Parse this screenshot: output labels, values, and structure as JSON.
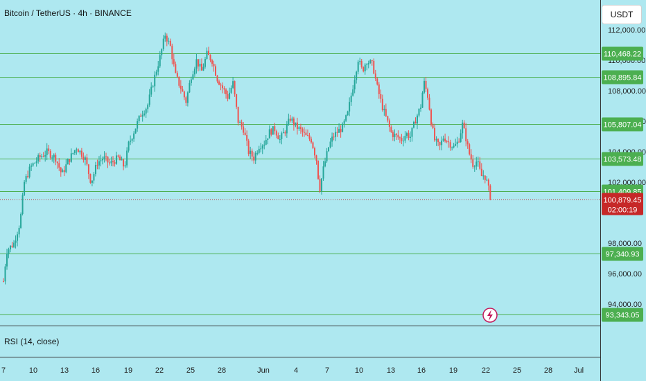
{
  "header": {
    "title": "Bitcoin / TetherUS · 4h · BINANCE"
  },
  "currency": {
    "label": "USDT"
  },
  "rsi": {
    "label": "RSI (14, close)"
  },
  "colors": {
    "background": "#aee8f0",
    "up": "#26a69a",
    "down": "#ef5350",
    "level": "#4caf50",
    "current": "#c62828"
  },
  "chart_data": {
    "type": "candlestick",
    "title": "Bitcoin / TetherUS · 4h · BINANCE",
    "ylim": [
      92600,
      112600
    ],
    "y_ticks": [
      {
        "value": 112000,
        "label": "112,000.00"
      },
      {
        "value": 110000,
        "label": "110,000.00"
      },
      {
        "value": 108000,
        "label": "108,000.00"
      },
      {
        "value": 106000,
        "label": "106,000.00"
      },
      {
        "value": 104000,
        "label": "104,000.00"
      },
      {
        "value": 102000,
        "label": "102,000.00"
      },
      {
        "value": 98000,
        "label": "98,000.00"
      },
      {
        "value": 96000,
        "label": "96,000.00"
      },
      {
        "value": 94000,
        "label": "94,000.00"
      }
    ],
    "x_ticks": [
      "7",
      "10",
      "13",
      "16",
      "19",
      "22",
      "25",
      "28",
      "Jun",
      "4",
      "7",
      "10",
      "13",
      "16",
      "19",
      "22",
      "25",
      "28",
      "Jul"
    ],
    "levels": [
      {
        "value": 110468.22,
        "label": "110,468.22"
      },
      {
        "value": 108895.84,
        "label": "108,895.84"
      },
      {
        "value": 105807.04,
        "label": "105,807.04"
      },
      {
        "value": 103573.48,
        "label": "103,573.48"
      },
      {
        "value": 101409.85,
        "label": "101,409.85"
      },
      {
        "value": 97340.93,
        "label": "97,340.93"
      },
      {
        "value": 93343.05,
        "label": "93,343.05"
      }
    ],
    "current_price": {
      "value": 100879.45,
      "label": "100,879.45",
      "countdown": "02:00:19"
    },
    "close_path": [
      [
        7,
        95500
      ],
      [
        7.3,
        97500
      ],
      [
        8.0,
        98000
      ],
      [
        8.6,
        99400
      ],
      [
        9.0,
        102000
      ],
      [
        9.6,
        103000
      ],
      [
        10.4,
        103600
      ],
      [
        11.2,
        104000
      ],
      [
        12.0,
        103600
      ],
      [
        12.6,
        102500
      ],
      [
        13.2,
        103400
      ],
      [
        14.0,
        104300
      ],
      [
        14.8,
        103600
      ],
      [
        15.4,
        102000
      ],
      [
        16.0,
        103300
      ],
      [
        16.6,
        103600
      ],
      [
        17.2,
        103200
      ],
      [
        18.0,
        103600
      ],
      [
        18.6,
        103000
      ],
      [
        19.0,
        104500
      ],
      [
        19.6,
        105500
      ],
      [
        20.2,
        106500
      ],
      [
        20.8,
        107000
      ],
      [
        21.4,
        108700
      ],
      [
        22.0,
        110200
      ],
      [
        22.5,
        111700
      ],
      [
        23.0,
        110900
      ],
      [
        23.5,
        109000
      ],
      [
        24.0,
        108200
      ],
      [
        24.5,
        107300
      ],
      [
        25.0,
        109000
      ],
      [
        25.5,
        110000
      ],
      [
        26.0,
        109300
      ],
      [
        26.5,
        110400
      ],
      [
        27.0,
        110000
      ],
      [
        27.5,
        108800
      ],
      [
        28.0,
        108200
      ],
      [
        28.5,
        107600
      ],
      [
        29.0,
        108500
      ],
      [
        29.5,
        106000
      ],
      [
        30.0,
        105500
      ],
      [
        30.5,
        104000
      ],
      [
        31.0,
        103600
      ],
      [
        31.5,
        104400
      ],
      [
        32.0,
        104600
      ],
      [
        32.5,
        105300
      ],
      [
        33.0,
        105500
      ],
      [
        33.5,
        104800
      ],
      [
        34.0,
        105400
      ],
      [
        34.5,
        106200
      ],
      [
        35.0,
        105700
      ],
      [
        35.5,
        105400
      ],
      [
        36.0,
        105000
      ],
      [
        36.5,
        104800
      ],
      [
        37.0,
        103500
      ],
      [
        37.3,
        101500
      ],
      [
        37.7,
        103000
      ],
      [
        38.2,
        104400
      ],
      [
        38.6,
        105000
      ],
      [
        39.0,
        105300
      ],
      [
        39.5,
        105600
      ],
      [
        40.0,
        106500
      ],
      [
        40.5,
        108300
      ],
      [
        41.0,
        110100
      ],
      [
        41.4,
        109300
      ],
      [
        41.8,
        110000
      ],
      [
        42.4,
        109700
      ],
      [
        42.8,
        108300
      ],
      [
        43.3,
        107000
      ],
      [
        43.8,
        106000
      ],
      [
        44.2,
        105200
      ],
      [
        44.7,
        105000
      ],
      [
        45.2,
        104800
      ],
      [
        45.6,
        105200
      ],
      [
        46.0,
        105000
      ],
      [
        46.5,
        106100
      ],
      [
        47.0,
        107000
      ],
      [
        47.3,
        108600
      ],
      [
        47.7,
        107600
      ],
      [
        48.0,
        106000
      ],
      [
        48.3,
        104800
      ],
      [
        48.8,
        104300
      ],
      [
        49.2,
        105000
      ],
      [
        49.7,
        104600
      ],
      [
        50.2,
        104300
      ],
      [
        50.6,
        104700
      ],
      [
        51.0,
        105800
      ],
      [
        51.3,
        105000
      ],
      [
        51.6,
        104000
      ],
      [
        52.0,
        103200
      ],
      [
        52.4,
        103400
      ],
      [
        52.8,
        102400
      ],
      [
        53.1,
        102500
      ],
      [
        53.4,
        101900
      ],
      [
        53.7,
        100880
      ]
    ]
  }
}
